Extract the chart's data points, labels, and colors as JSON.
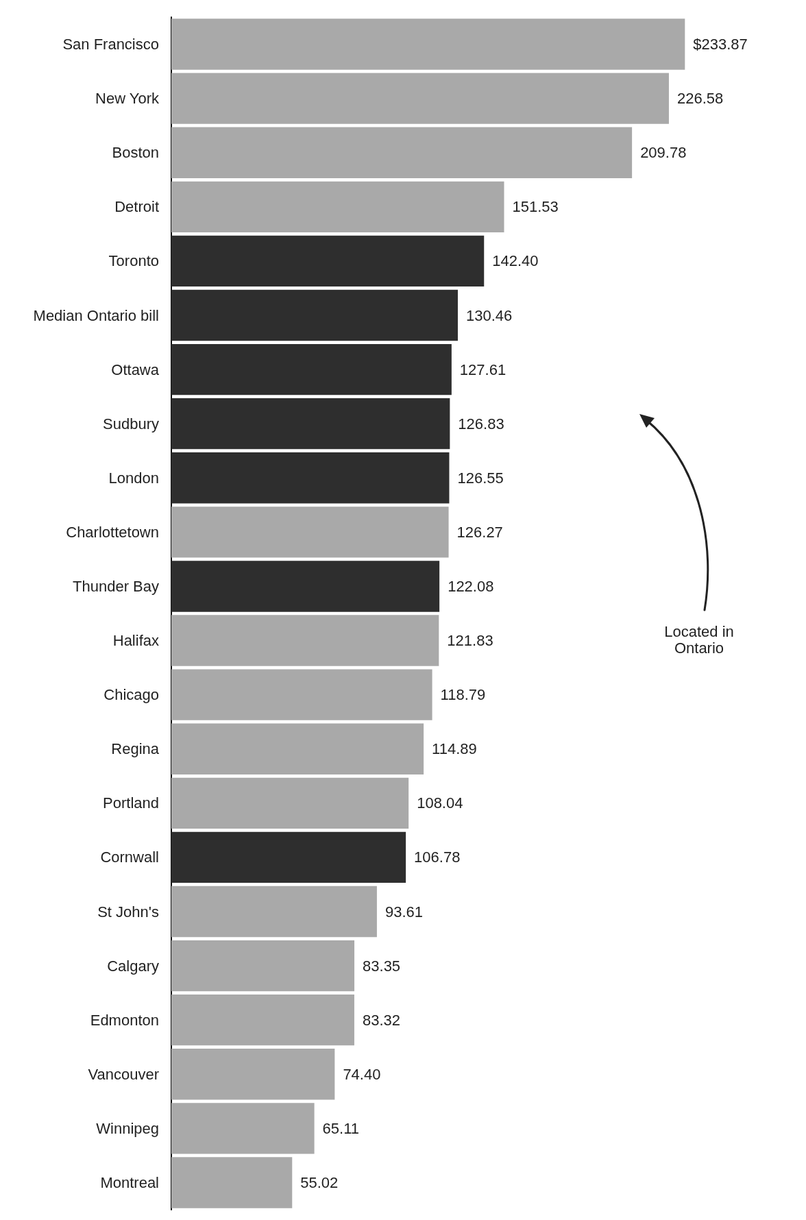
{
  "chart_data": {
    "type": "bar",
    "orientation": "horizontal",
    "categories": [
      "San Francisco",
      "New York",
      "Boston",
      "Detroit",
      "Toronto",
      "Median Ontario bill",
      "Ottawa",
      "Sudbury",
      "London",
      "Charlottetown",
      "Thunder Bay",
      "Halifax",
      "Chicago",
      "Regina",
      "Portland",
      "Cornwall",
      "St John's",
      "Calgary",
      "Edmonton",
      "Vancouver",
      "Winnipeg",
      "Montreal"
    ],
    "values": [
      233.87,
      226.58,
      209.78,
      151.53,
      142.4,
      130.46,
      127.61,
      126.83,
      126.55,
      126.27,
      122.08,
      121.83,
      118.79,
      114.89,
      108.04,
      106.78,
      93.61,
      83.35,
      83.32,
      74.4,
      65.11,
      55.02
    ],
    "value_labels": [
      "$233.87",
      "226.58",
      "209.78",
      "151.53",
      "142.40",
      "130.46",
      "127.61",
      "126.83",
      "126.55",
      "126.27",
      "122.08",
      "121.83",
      "118.79",
      "114.89",
      "108.04",
      "106.78",
      "93.61",
      "83.35",
      "83.32",
      "74.40",
      "65.11",
      "55.02"
    ],
    "colors": [
      "#a9a9a9",
      "#a9a9a9",
      "#a9a9a9",
      "#a9a9a9",
      "#2e2e2e",
      "#2e2e2e",
      "#2e2e2e",
      "#2e2e2e",
      "#2e2e2e",
      "#a9a9a9",
      "#2e2e2e",
      "#a9a9a9",
      "#a9a9a9",
      "#a9a9a9",
      "#a9a9a9",
      "#2e2e2e",
      "#a9a9a9",
      "#a9a9a9",
      "#a9a9a9",
      "#a9a9a9",
      "#a9a9a9",
      "#a9a9a9"
    ],
    "annotations": [
      "Located in Ontario"
    ]
  }
}
